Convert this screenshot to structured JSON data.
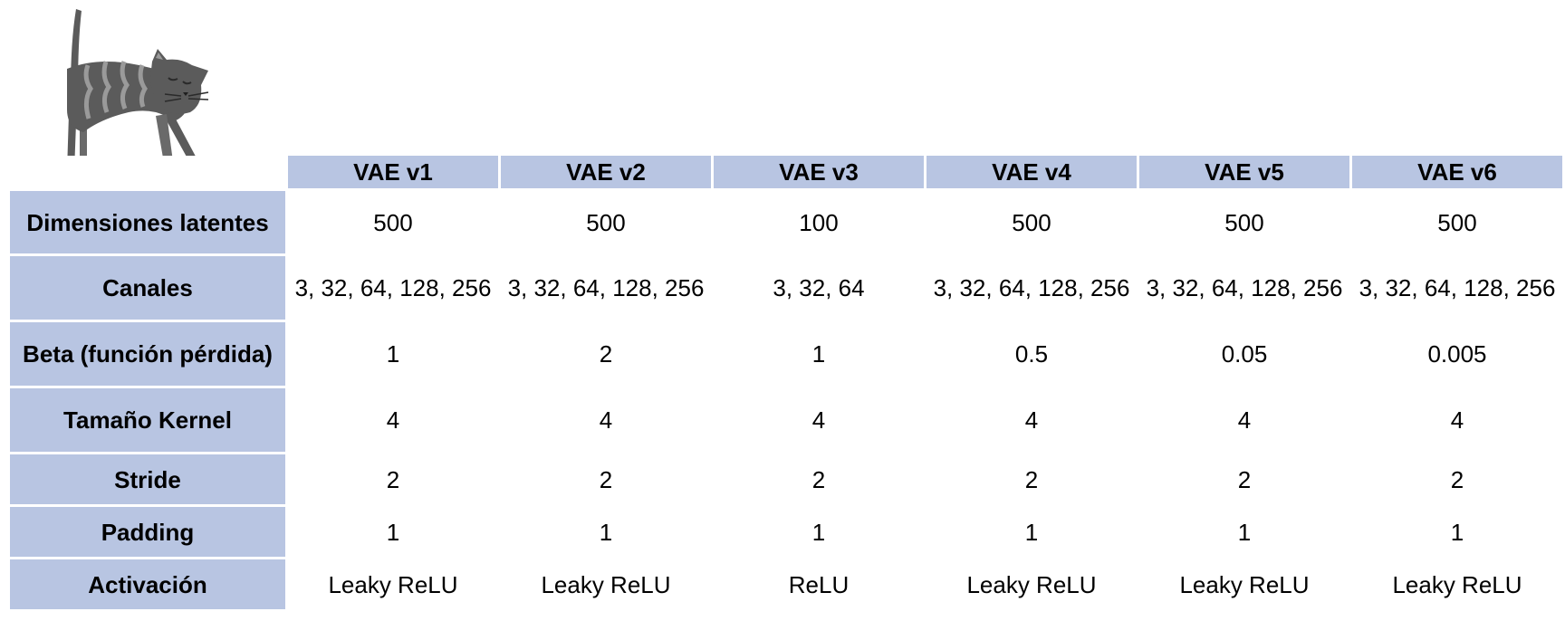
{
  "table": {
    "columns": [
      "VAE v1",
      "VAE v2",
      "VAE v3",
      "VAE v4",
      "VAE v5",
      "VAE v6"
    ],
    "rows": [
      {
        "label": "Dimensiones latentes",
        "values": [
          "500",
          "500",
          "100",
          "500",
          "500",
          "500"
        ]
      },
      {
        "label": "Canales",
        "values": [
          "3, 32, 64, 128, 256",
          "3, 32, 64, 128, 256",
          "3, 32, 64",
          "3, 32, 64, 128, 256",
          "3, 32, 64, 128, 256",
          "3, 32, 64, 128, 256"
        ]
      },
      {
        "label": "Beta (función pérdida)",
        "values": [
          "1",
          "2",
          "1",
          "0.5",
          "0.05",
          "0.005"
        ]
      },
      {
        "label": "Tamaño Kernel",
        "values": [
          "4",
          "4",
          "4",
          "4",
          "4",
          "4"
        ]
      },
      {
        "label": "Stride",
        "values": [
          "2",
          "2",
          "2",
          "2",
          "2",
          "2"
        ]
      },
      {
        "label": "Padding",
        "values": [
          "1",
          "1",
          "1",
          "1",
          "1",
          "1"
        ]
      },
      {
        "label": "Activación",
        "values": [
          "Leaky ReLU",
          "Leaky ReLU",
          "ReLU",
          "Leaky ReLU",
          "Leaky ReLU",
          "Leaky ReLU"
        ]
      }
    ]
  },
  "colors": {
    "header_fill": "#b8c5e2",
    "cat_body": "#5b5b5b",
    "cat_stripes": "#9a9a9a",
    "shadow": "#d9d9d9"
  },
  "illustration": {
    "icon": "cat-illustration-icon"
  }
}
